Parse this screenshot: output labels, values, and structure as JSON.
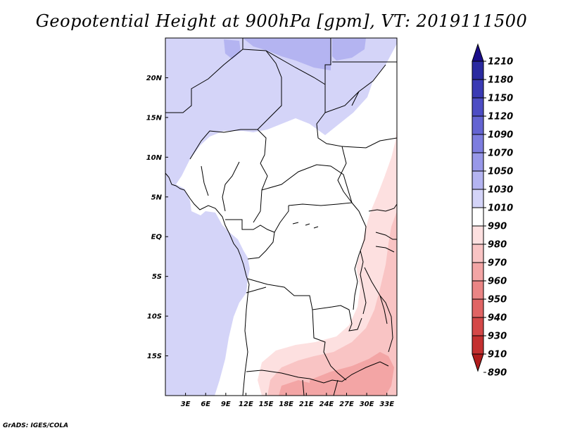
{
  "title": "Geopotential Height at 900hPa [gpm], VT: 2019111500",
  "credit": "GrADS: IGES/COLA",
  "map": {
    "lon_range": [
      0,
      34.5
    ],
    "lat_range": [
      -20,
      25
    ],
    "lat_ticks": [
      {
        "lat": 20,
        "label": "20N"
      },
      {
        "lat": 15,
        "label": "15N"
      },
      {
        "lat": 10,
        "label": "10N"
      },
      {
        "lat": 5,
        "label": "5N"
      },
      {
        "lat": 0,
        "label": "EQ"
      },
      {
        "lat": -5,
        "label": "5S"
      },
      {
        "lat": -10,
        "label": "10S"
      },
      {
        "lat": -15,
        "label": "15S"
      }
    ],
    "lon_ticks": [
      {
        "lon": 3,
        "label": "3E"
      },
      {
        "lon": 6,
        "label": "6E"
      },
      {
        "lon": 9,
        "label": "9E"
      },
      {
        "lon": 12,
        "label": "12E"
      },
      {
        "lon": 15,
        "label": "15E"
      },
      {
        "lon": 18,
        "label": "18E"
      },
      {
        "lon": 21,
        "label": "21E"
      },
      {
        "lon": 24,
        "label": "24E"
      },
      {
        "lon": 27,
        "label": "27E"
      },
      {
        "lon": 30,
        "label": "30E"
      },
      {
        "lon": 33,
        "label": "33E"
      }
    ]
  },
  "colorbar": {
    "labels": [
      "1210",
      "1180",
      "1150",
      "1120",
      "1090",
      "1070",
      "1050",
      "1030",
      "1010",
      "990",
      "980",
      "970",
      "960",
      "950",
      "940",
      "930",
      "910",
      "890"
    ],
    "colors": [
      "#1a0d8a",
      "#2a2aa0",
      "#3a3ab4",
      "#4d4dc4",
      "#6464d2",
      "#7d7ddf",
      "#9898e9",
      "#b4b4f1",
      "#d4d4f8",
      "#ffffff",
      "#fde0e0",
      "#f9c4c4",
      "#f3a5a5",
      "#ea8585",
      "#e06464",
      "#d44848",
      "#c43030",
      "#b01c1c"
    ]
  },
  "fill_colors": {
    "band_1010": "#d4d4f8",
    "band_1030": "#b4b4f1",
    "band_980": "#fde0e0",
    "band_970": "#f9c4c4",
    "band_960": "#f3a5a5"
  }
}
